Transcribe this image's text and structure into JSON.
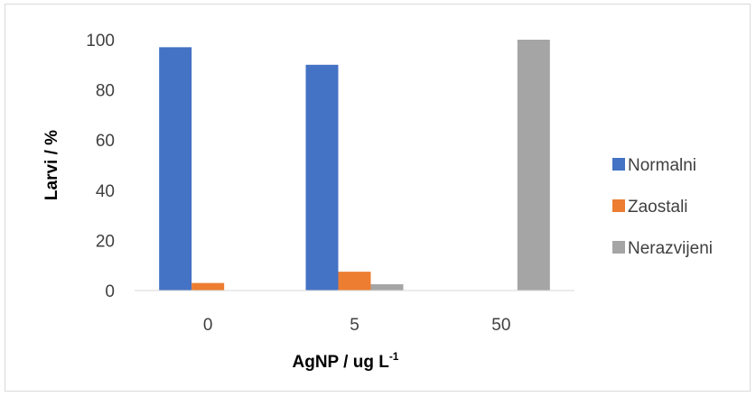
{
  "chart_data": {
    "type": "bar",
    "categories": [
      "0",
      "5",
      "50"
    ],
    "series": [
      {
        "name": "Normalni",
        "color": "#4472C4",
        "values": [
          97,
          90,
          0
        ]
      },
      {
        "name": "Zaostali",
        "color": "#ED7D31",
        "values": [
          3,
          7.5,
          0
        ]
      },
      {
        "name": "Nerazvijeni",
        "color": "#A5A5A5",
        "values": [
          0,
          2.5,
          100
        ]
      }
    ],
    "xlabel": "AgNP / ug L",
    "xlabel_superscript": "-1",
    "ylabel": "Larvi / %",
    "ylim": [
      0,
      100
    ],
    "yticks": [
      "0",
      "20",
      "40",
      "60",
      "80",
      "100"
    ],
    "grid": false,
    "legend_position": "right"
  }
}
